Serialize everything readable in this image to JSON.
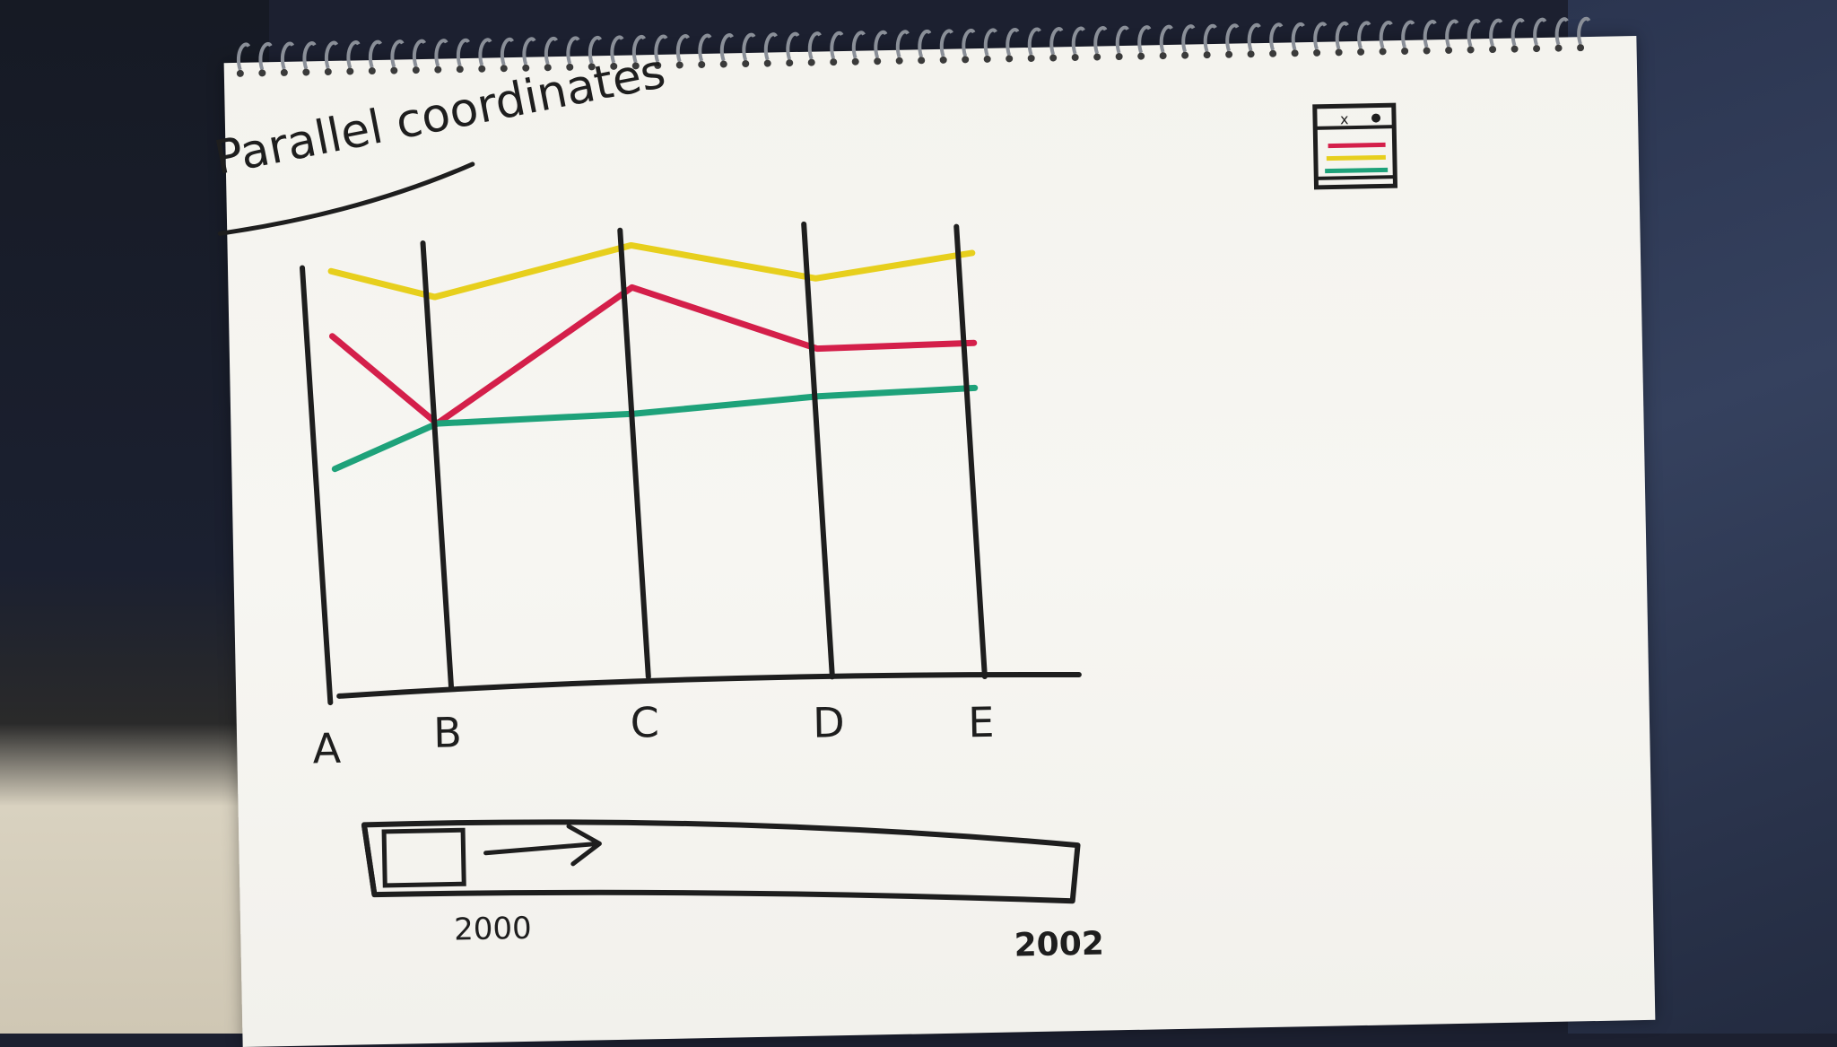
{
  "title": "Parallel coordinates",
  "axes": [
    "A",
    "B",
    "C",
    "D",
    "E"
  ],
  "chart_data": {
    "type": "line",
    "categories": [
      "A",
      "B",
      "C",
      "D",
      "E"
    ],
    "ylim": [
      0,
      1
    ],
    "series": [
      {
        "values": [
          0.78,
          0.68,
          0.85,
          0.72,
          0.8
        ],
        "color": "#e7cf1d"
      },
      {
        "values": [
          0.55,
          0.23,
          0.7,
          0.47,
          0.48
        ],
        "color": "#d41f4a"
      },
      {
        "values": [
          0.08,
          0.23,
          0.25,
          0.3,
          0.32
        ],
        "color": "#1ea27a"
      }
    ],
    "grid": false
  },
  "timeline": {
    "start_label": "2000",
    "end_label": "2002"
  },
  "legend_icon": "legend-icon",
  "colors": {
    "ink": "#1e1e1e",
    "yellow": "#e7cf1d",
    "red": "#d41f4a",
    "green": "#1ea27a"
  }
}
